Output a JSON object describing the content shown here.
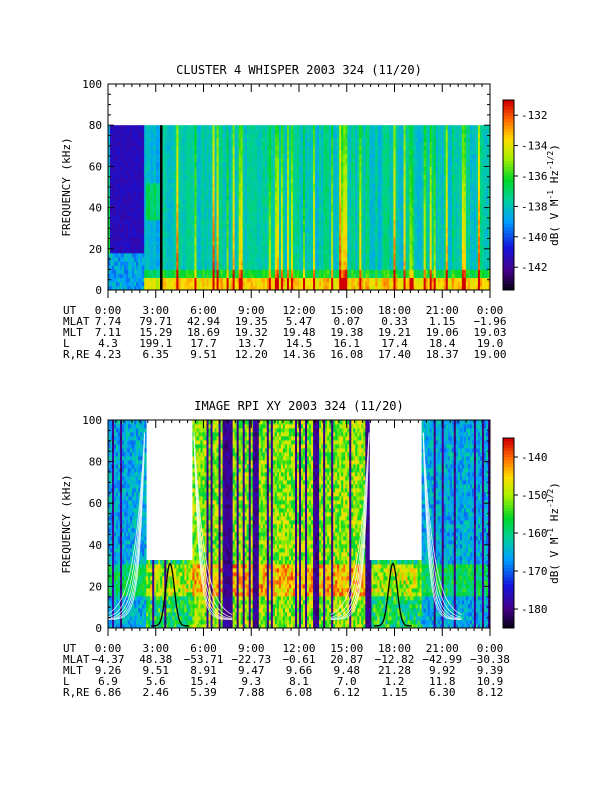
{
  "chart_data": [
    {
      "type": "heatmap",
      "title": "CLUSTER 4 WHISPER 2003 324 (11/20)",
      "ylabel": "FREQUENCY (kHz)",
      "ylim": [
        0,
        100
      ],
      "yticks": [
        "0",
        "20",
        "40",
        "60",
        "80",
        "100"
      ],
      "x_ticks": [
        "0:00",
        "3:00",
        "6:00",
        "9:00",
        "12:00",
        "15:00",
        "18:00",
        "21:00",
        "0:00"
      ],
      "colorbar": {
        "label": "dB( V M",
        "exp1": "-1",
        "mid": " Hz",
        "exp2": "-1/2",
        "end": ")",
        "ticks": [
          "-132",
          "-134",
          "-136",
          "-138",
          "-140",
          "-142"
        ],
        "vmin": -143.5,
        "vmax": -131.0
      },
      "ephemeris": [
        {
          "label": "UT",
          "values": [
            "0:00",
            "3:00",
            "6:00",
            "9:00",
            "12:00",
            "15:00",
            "18:00",
            "21:00",
            "0:00"
          ]
        },
        {
          "label": "MLAT",
          "values": [
            "7.74",
            "79.71",
            "42.94",
            "19.35",
            "5.47",
            "0.07",
            "0.33",
            "1.15",
            "−1.96"
          ]
        },
        {
          "label": "MLT",
          "values": [
            "7.11",
            "15.29",
            "18.69",
            "19.32",
            "19.48",
            "19.38",
            "19.21",
            "19.06",
            "19.03"
          ]
        },
        {
          "label": "L",
          "values": [
            "4.3",
            "199.1",
            "17.7",
            "13.7",
            "14.5",
            "16.1",
            "17.4",
            "18.4",
            "19.0"
          ]
        },
        {
          "label": "R,RE",
          "values": [
            "4.23",
            "6.35",
            "9.51",
            "12.20",
            "14.36",
            "16.08",
            "17.40",
            "18.37",
            "19.00"
          ]
        }
      ]
    },
    {
      "type": "heatmap",
      "title": "IMAGE RPI XY 2003 324 (11/20)",
      "ylabel": "FREQUENCY (kHz)",
      "ylim": [
        0,
        100
      ],
      "yticks": [
        "0",
        "20",
        "40",
        "60",
        "80",
        "100"
      ],
      "x_ticks": [
        "0:00",
        "3:00",
        "6:00",
        "9:00",
        "12:00",
        "15:00",
        "18:00",
        "21:00",
        "0:00"
      ],
      "colorbar": {
        "label": "dB( V M",
        "exp1": "-1",
        "mid": " Hz",
        "exp2": "-1/2",
        "end": ")",
        "ticks": [
          "-140",
          "-150",
          "-160",
          "-170",
          "-180"
        ],
        "vmin": -185,
        "vmax": -135
      },
      "ephemeris": [
        {
          "label": "UT",
          "values": [
            "0:00",
            "3:00",
            "6:00",
            "9:00",
            "12:00",
            "15:00",
            "18:00",
            "21:00",
            "0:00"
          ]
        },
        {
          "label": "MLAT",
          "values": [
            "−4.37",
            "48.38",
            "−53.71",
            "−22.73",
            "−0.61",
            "20.87",
            "−12.82",
            "−42.99",
            "−30.38"
          ]
        },
        {
          "label": "MLT",
          "values": [
            "9.26",
            "9.51",
            "8.91",
            "9.47",
            "9.66",
            "9.48",
            "21.28",
            "9.92",
            "9.39"
          ]
        },
        {
          "label": "L",
          "values": [
            "6.9",
            "5.6",
            "15.4",
            "9.3",
            "8.1",
            "7.0",
            "1.2",
            "11.8",
            "10.9"
          ]
        },
        {
          "label": "R,RE",
          "values": [
            "6.86",
            "2.46",
            "5.39",
            "7.88",
            "6.08",
            "6.12",
            "1.15",
            "6.30",
            "8.12"
          ]
        }
      ]
    }
  ]
}
